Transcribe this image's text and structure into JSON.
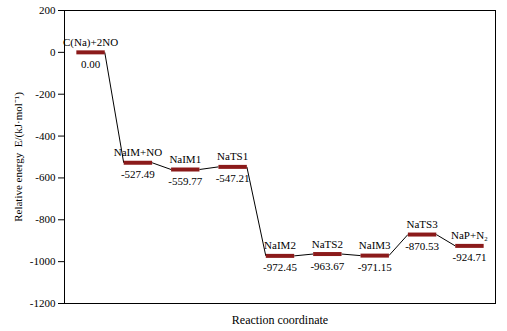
{
  "chart_data": {
    "type": "energy-profile",
    "x_label": "Reaction coordinate",
    "y_label": "Relative energy  E/(kJ·mol⁻¹)",
    "categories": [
      "C(Na)+2NO",
      "NaIM+NO",
      "NaIM1",
      "NaTS1",
      "NaIM2",
      "NaTS2",
      "NaIM3",
      "NaTS3",
      "NaP+N₂"
    ],
    "values": [
      0.0,
      -527.49,
      -559.77,
      -547.21,
      -972.45,
      -963.67,
      -971.15,
      -870.53,
      -924.71
    ],
    "value_labels": [
      "0.00",
      "-527.49",
      "-559.77",
      "-547.21",
      "-972.45",
      "-963.67",
      "-971.15",
      "-870.53",
      "-924.71"
    ],
    "color": "#8b1a1a",
    "ylim": [
      -1200,
      200
    ],
    "yticks": [
      -1200,
      -1000,
      -800,
      -600,
      -400,
      -200,
      0,
      200
    ],
    "data_labels": true,
    "tick_labels": "y"
  }
}
